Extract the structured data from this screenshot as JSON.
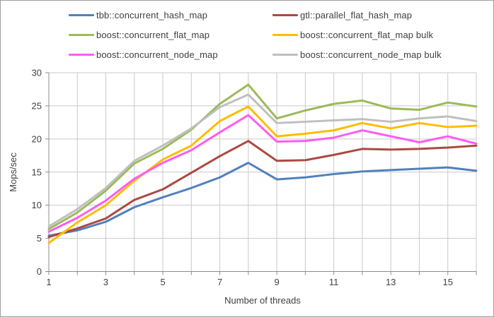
{
  "window": {
    "background": "#ffffff",
    "border_color": "#9e9e9e",
    "text_color": "#3f3f3f",
    "gridline_color": "#c9c9c9",
    "axis_color": "#8c8c8c"
  },
  "chart_data": {
    "type": "line",
    "title": "",
    "xlabel": "Number of threads",
    "ylabel": "Mops/sec",
    "x": [
      1,
      2,
      3,
      4,
      5,
      6,
      7,
      8,
      9,
      10,
      11,
      12,
      13,
      14,
      15,
      16
    ],
    "xlim": [
      1,
      16
    ],
    "ylim": [
      0,
      30
    ],
    "y_ticks": [
      0,
      5,
      10,
      15,
      20,
      25,
      30
    ],
    "x_ticks_labeled": [
      1,
      3,
      5,
      7,
      9,
      11,
      13,
      15
    ],
    "grid": "both",
    "legend_position": "top-two-columns",
    "line_width": 3,
    "series": [
      {
        "name": "tbb::concurrent_hash_map",
        "color": "#4f81bd",
        "values": [
          5.4,
          6.2,
          7.5,
          9.7,
          11.2,
          12.6,
          14.2,
          16.4,
          13.9,
          14.2,
          14.7,
          15.1,
          15.3,
          15.5,
          15.7,
          15.2
        ]
      },
      {
        "name": "gtl::parallel_flat_hash_map",
        "color": "#ab4a41",
        "values": [
          5.2,
          6.5,
          8.0,
          10.8,
          12.4,
          14.9,
          17.4,
          19.7,
          16.7,
          16.8,
          17.6,
          18.5,
          18.4,
          18.5,
          18.7,
          19.0
        ]
      },
      {
        "name": "boost::concurrent_flat_map",
        "color": "#9bbb59",
        "values": [
          6.4,
          8.9,
          12.2,
          16.3,
          18.5,
          21.4,
          25.3,
          28.2,
          23.1,
          24.3,
          25.3,
          25.8,
          24.6,
          24.4,
          25.5,
          24.9
        ]
      },
      {
        "name": "boost::concurrent_flat_map bulk",
        "color": "#ffbc00",
        "values": [
          4.3,
          7.4,
          10.0,
          13.7,
          16.9,
          19.0,
          22.7,
          24.9,
          20.4,
          20.8,
          21.3,
          22.4,
          21.6,
          22.4,
          21.8,
          22.0
        ]
      },
      {
        "name": "boost::concurrent_node_map",
        "color": "#ff5bf1",
        "values": [
          6.0,
          8.1,
          10.7,
          14.0,
          16.4,
          18.3,
          21.0,
          23.6,
          19.6,
          19.7,
          20.2,
          21.3,
          20.4,
          19.5,
          20.4,
          19.3
        ]
      },
      {
        "name": "boost::concurrent_node_map bulk",
        "color": "#bfbfbf",
        "values": [
          6.8,
          9.4,
          12.6,
          16.7,
          19.0,
          21.6,
          24.8,
          26.7,
          22.4,
          22.6,
          22.8,
          23.0,
          22.6,
          23.1,
          23.4,
          22.7
        ]
      }
    ]
  }
}
